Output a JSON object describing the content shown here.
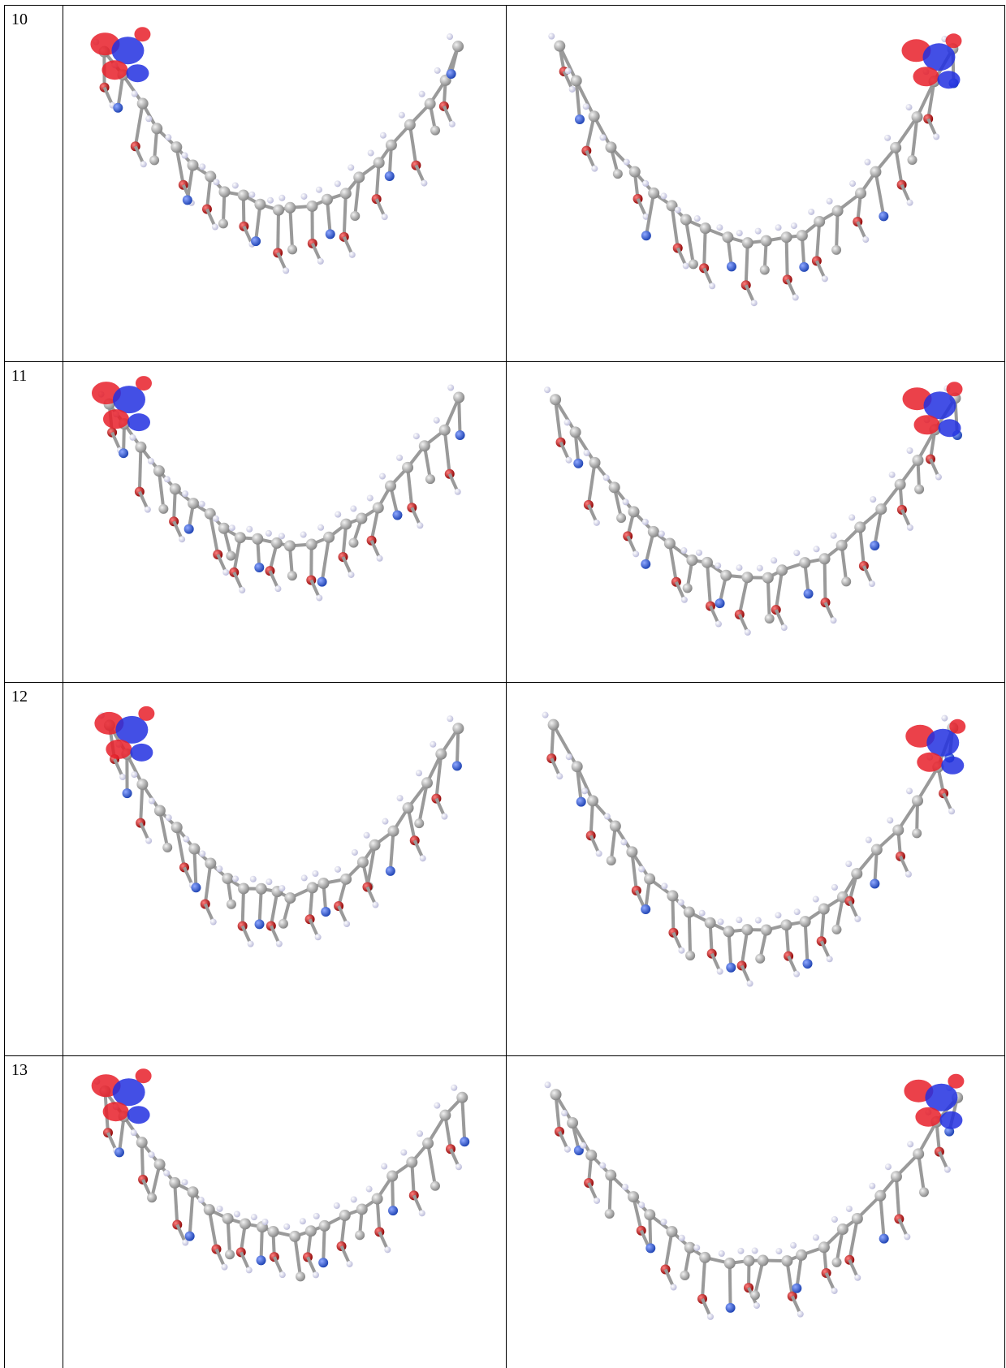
{
  "table": {
    "rows": [
      {
        "label": "10"
      },
      {
        "label": "11"
      },
      {
        "label": "12"
      },
      {
        "label": "13"
      }
    ]
  }
}
